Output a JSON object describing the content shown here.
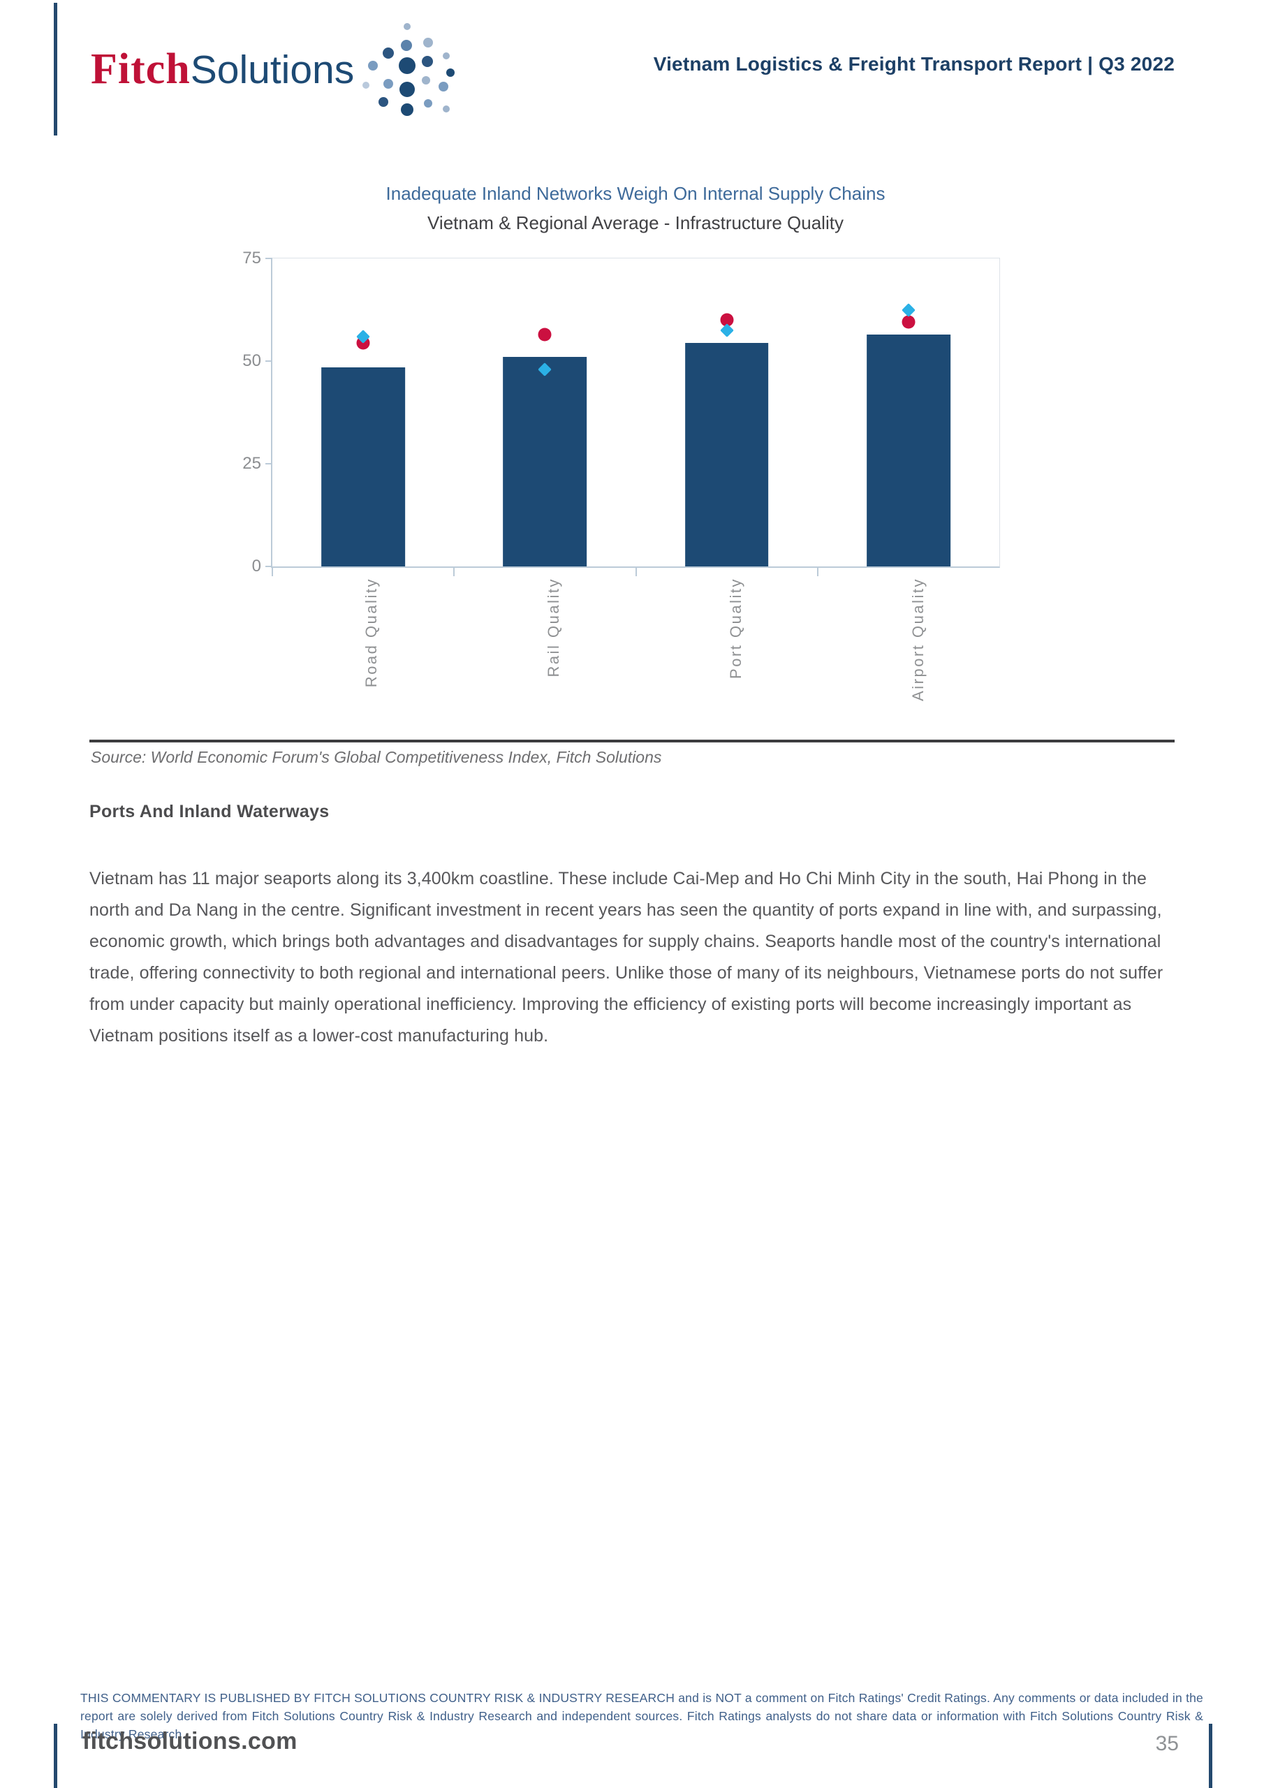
{
  "header": {
    "logo_fitch": "Fitch",
    "logo_solutions": "Solutions",
    "report_title": "Vietnam Logistics & Freight Transport Report | Q3 2022"
  },
  "chart": {
    "title": "Inadequate Inland Networks Weigh On Internal Supply Chains",
    "subtitle": "Vietnam & Regional Average - Infrastructure Quality"
  },
  "chart_data": {
    "type": "bar",
    "title": "Inadequate Inland Networks Weigh On Internal Supply Chains",
    "subtitle": "Vietnam & Regional Average - Infrastructure Quality",
    "categories": [
      "Road Quality",
      "Rail Quality",
      "Port Quality",
      "Airport Quality"
    ],
    "series": [
      {
        "name": "bars-navy",
        "style": "bar",
        "color": "#1d4a74",
        "values": [
          48.5,
          51,
          54.5,
          56.5
        ]
      },
      {
        "name": "circle-markers-red",
        "style": "circle",
        "color": "#cb1040",
        "values": [
          54.5,
          56.5,
          60,
          59.5
        ]
      },
      {
        "name": "diamond-markers-cyan",
        "style": "diamond",
        "color": "#2bb1e6",
        "values": [
          56,
          48,
          57.5,
          62.5
        ]
      }
    ],
    "xlabel": "",
    "ylabel": "",
    "ylim": [
      0,
      75
    ],
    "yticks": [
      0,
      25,
      50,
      75
    ],
    "grid": false,
    "legend": "none"
  },
  "source_note": "Source: World Economic Forum's Global Competitiveness Index, Fitch Solutions",
  "section": {
    "heading": "Ports And Inland Waterways",
    "paragraph": "Vietnam has 11 major seaports along its 3,400km coastline. These include Cai-Mep and Ho Chi Minh City in the south, Hai Phong in the north and Da Nang in the centre. Significant investment in recent years has seen the quantity of ports expand in line with, and surpassing, economic growth, which brings both advantages and disadvantages for supply chains. Seaports handle most of the country's international trade, offering connectivity to both regional and international peers. Unlike those of many of its neighbours, Vietnamese ports do not suffer from under capacity but mainly operational inefficiency. Improving the efficiency of existing ports will become increasingly important as Vietnam positions itself as a lower-cost manufacturing hub."
  },
  "footer": {
    "disclaimer": "THIS COMMENTARY IS PUBLISHED BY FITCH SOLUTIONS COUNTRY RISK & INDUSTRY RESEARCH and is NOT a comment on Fitch Ratings' Credit Ratings. Any comments or data included in the report are solely derived from Fitch Solutions Country Risk & Industry Research and independent sources. Fitch Ratings analysts do not share data or information with Fitch Solutions Country Risk & Industry Research.",
    "website": "fitchsolutions.com",
    "page_number": "35"
  },
  "colors": {
    "navy": "#1d4a74",
    "crimson": "#cb1040",
    "cyan": "#2bb1e6",
    "logo_red": "#bf1137",
    "header_navy": "#1d4066",
    "title_blue": "#3e6a9a",
    "disclaimer_blue": "#40608a"
  }
}
